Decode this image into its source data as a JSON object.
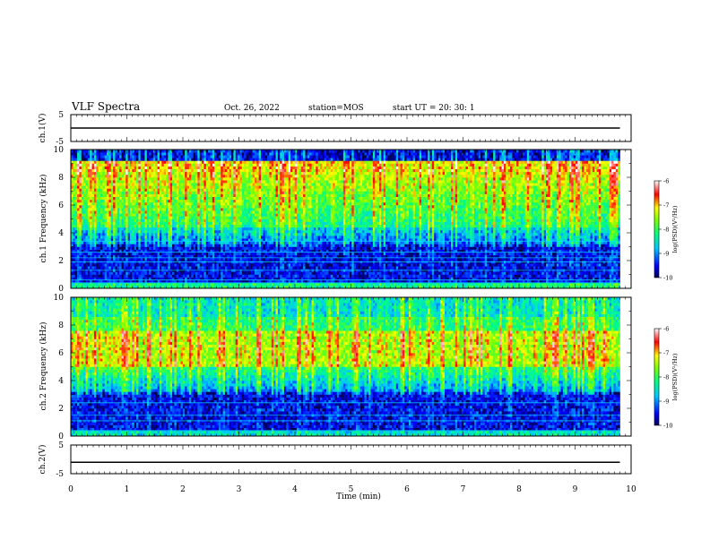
{
  "header": {
    "title": "VLF Spectra",
    "date": "Oct. 26, 2022",
    "station": "station=MOS",
    "start_time": "start  UT =   20: 30: 1"
  },
  "chart_data": [
    {
      "id": "ch1-voltage",
      "type": "line",
      "ylabel": "ch.1(V)",
      "ylim": [
        -5,
        5
      ],
      "yticks": [
        "5",
        "-5"
      ],
      "xlim": [
        0,
        10
      ],
      "series": [
        {
          "x": [
            0,
            9.8
          ],
          "y": [
            0,
            0
          ]
        }
      ]
    },
    {
      "id": "ch1-spectrogram",
      "type": "heatmap",
      "ylabel": "ch.1 Frequency (kHz)",
      "ylim": [
        0,
        10
      ],
      "yticks": [
        "0",
        "2",
        "4",
        "6",
        "8",
        "10"
      ],
      "xlim": [
        0,
        10
      ],
      "data_xmax": 9.8,
      "colorbar": {
        "label": "log(PSD)(V²/Hz)",
        "range": [
          -10,
          -6
        ],
        "ticks": [
          "-6",
          "-7",
          "-8",
          "-9",
          "-10"
        ]
      }
    },
    {
      "id": "ch2-spectrogram",
      "type": "heatmap",
      "ylabel": "ch.2 Frequency (kHz)",
      "ylim": [
        0,
        10
      ],
      "yticks": [
        "0",
        "2",
        "4",
        "6",
        "8",
        "10"
      ],
      "xlim": [
        0,
        10
      ],
      "data_xmax": 9.8,
      "colorbar": {
        "label": "log(PSD)(V²/Hz)",
        "range": [
          -10,
          -6
        ],
        "ticks": [
          "-6",
          "-7",
          "-8",
          "-9",
          "-10"
        ]
      }
    },
    {
      "id": "ch2-voltage",
      "type": "line",
      "ylabel": "ch.2(V)",
      "ylim": [
        -5,
        5
      ],
      "yticks": [
        "5",
        "-5"
      ],
      "xlim": [
        0,
        10
      ],
      "xlabel": "Time (min)",
      "xticks": [
        "0",
        "1",
        "2",
        "3",
        "4",
        "5",
        "6",
        "7",
        "8",
        "9",
        "10"
      ],
      "series": [
        {
          "x": [
            0,
            9.8
          ],
          "y": [
            -1,
            -1
          ]
        }
      ]
    }
  ]
}
